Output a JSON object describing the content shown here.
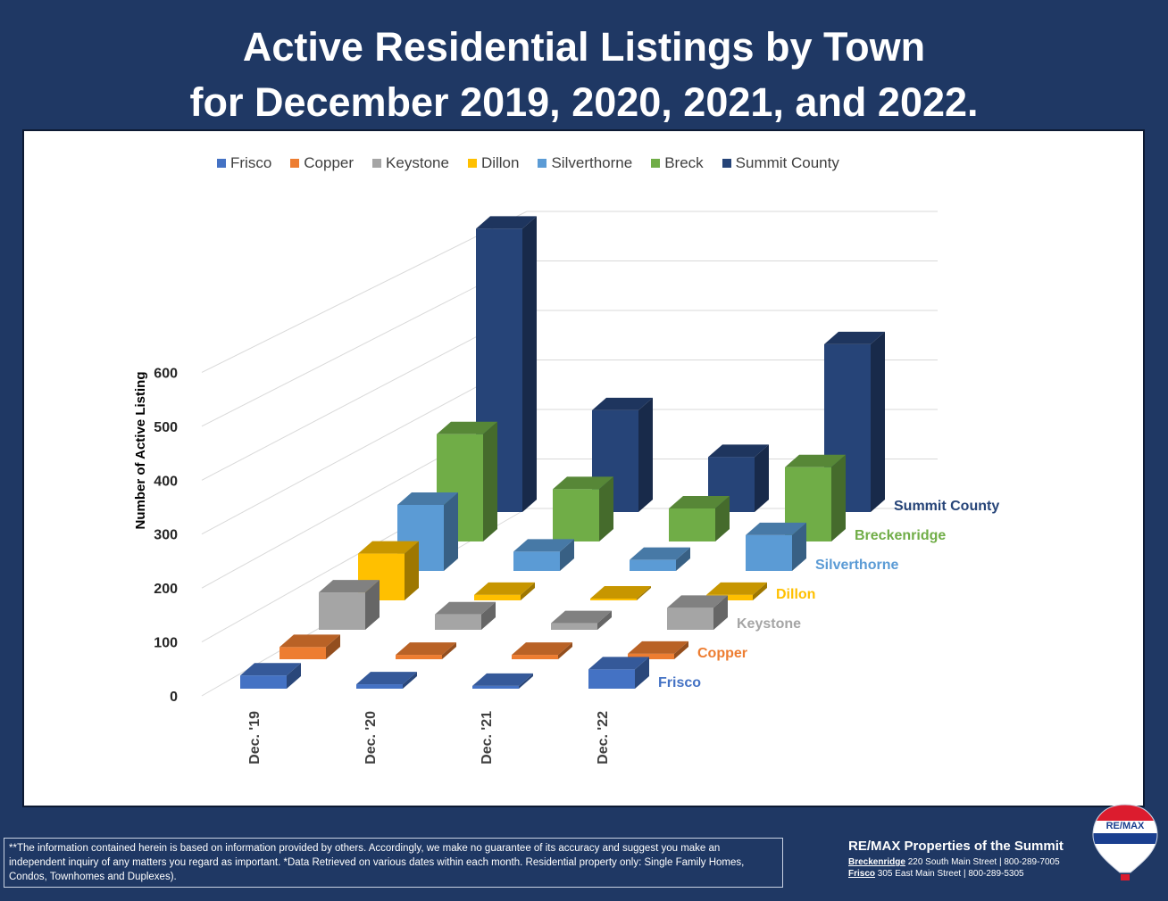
{
  "title": {
    "line1": "Active Residential Listings by Town",
    "line2": "for December 2019, 2020, 2021, and 2022."
  },
  "chart_data": {
    "type": "bar",
    "subtype": "3d-column",
    "categories": [
      "Dec. '19",
      "Dec. '20",
      "Dec. '21",
      "Dec. '22"
    ],
    "ylabel": "Number of Active Listing",
    "ylim": [
      0,
      600
    ],
    "yticks": [
      "0",
      "100",
      "200",
      "300",
      "400",
      "500",
      "600"
    ],
    "legend_position": "top",
    "series": [
      {
        "name": "Frisco",
        "end_label": "Frisco",
        "color": "#4472c4",
        "values": [
          24,
          8,
          5,
          35
        ]
      },
      {
        "name": "Copper",
        "end_label": "Copper",
        "color": "#ed7d31",
        "values": [
          22,
          8,
          8,
          10
        ]
      },
      {
        "name": "Keystone",
        "end_label": "Keystone",
        "color": "#a5a5a5",
        "values": [
          68,
          28,
          12,
          40
        ]
      },
      {
        "name": "Dillon",
        "end_label": "Dillon",
        "color": "#ffc000",
        "values": [
          85,
          10,
          1,
          10
        ]
      },
      {
        "name": "Silverthorne",
        "end_label": "Silverthorne",
        "color": "#5b9bd5",
        "values": [
          120,
          35,
          20,
          65
        ]
      },
      {
        "name": "Breck",
        "end_label": "Breckenridge",
        "color": "#70ad47",
        "values": [
          195,
          95,
          60,
          135
        ]
      },
      {
        "name": "Summit County",
        "end_label": "Summit County",
        "color": "#264478",
        "values": [
          515,
          185,
          100,
          305
        ]
      }
    ]
  },
  "footer": {
    "disclaimer": "**The information contained herein is based on information provided by others. Accordingly, we make no guarantee of its accuracy and suggest you make an independent inquiry of any matters you regard as important. *Data Retrieved on various dates within each month.  Residential property only: Single Family Homes, Condos, Townhomes and Duplexes)."
  },
  "brand": {
    "name": "RE/MAX",
    "tagline": "Properties of the Summit",
    "office1_town": "Breckenridge",
    "office1_detail": "220 South Main Street  |  800-289-7005",
    "office2_town": "Frisco",
    "office2_detail": "305 East Main Street  |  800-289-5305",
    "balloon_text": "RE/MAX"
  }
}
